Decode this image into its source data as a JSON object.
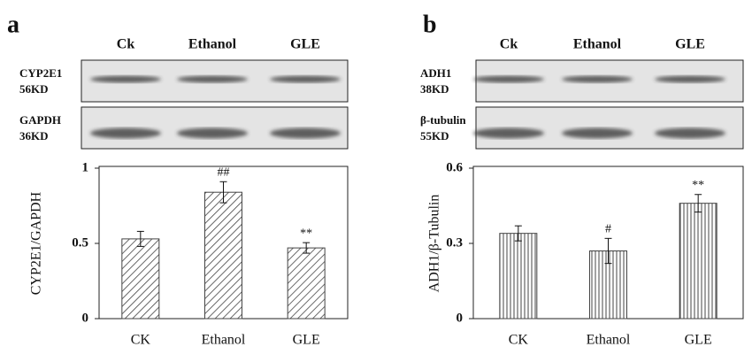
{
  "chart_data": [
    {
      "type": "bar",
      "panel_label": "a",
      "blot": {
        "lanes": [
          "Ck",
          "Ethanol",
          "GLE"
        ],
        "rows": [
          {
            "protein": "CYP2E1",
            "size": "56KD"
          },
          {
            "protein": "GAPDH",
            "size": "36KD"
          }
        ]
      },
      "ylabel": "CYP2E1/GAPDH",
      "categories": [
        "CK",
        "Ethanol",
        "GLE"
      ],
      "values": [
        0.53,
        0.84,
        0.47
      ],
      "errors": [
        0.05,
        0.07,
        0.035
      ],
      "markers": [
        null,
        "##",
        "**"
      ],
      "ylim": [
        0,
        1
      ],
      "yticks": [
        0,
        0.5,
        1
      ],
      "hatch": "diagonal",
      "color": "#444444"
    },
    {
      "type": "bar",
      "panel_label": "b",
      "blot": {
        "lanes": [
          "Ck",
          "Ethanol",
          "GLE"
        ],
        "rows": [
          {
            "protein": "ADH1",
            "size": "38KD"
          },
          {
            "protein": "β-tubulin",
            "size": "55KD"
          }
        ]
      },
      "ylabel": "ADH1/β-Tubulin",
      "categories": [
        "CK",
        "Ethanol",
        "GLE"
      ],
      "values": [
        0.34,
        0.27,
        0.46
      ],
      "errors": [
        0.03,
        0.05,
        0.035
      ],
      "markers": [
        null,
        "#",
        "**"
      ],
      "ylim": [
        0,
        0.6
      ],
      "yticks": [
        0,
        0.3,
        0.6
      ],
      "hatch": "vertical",
      "color": "#444444"
    }
  ]
}
